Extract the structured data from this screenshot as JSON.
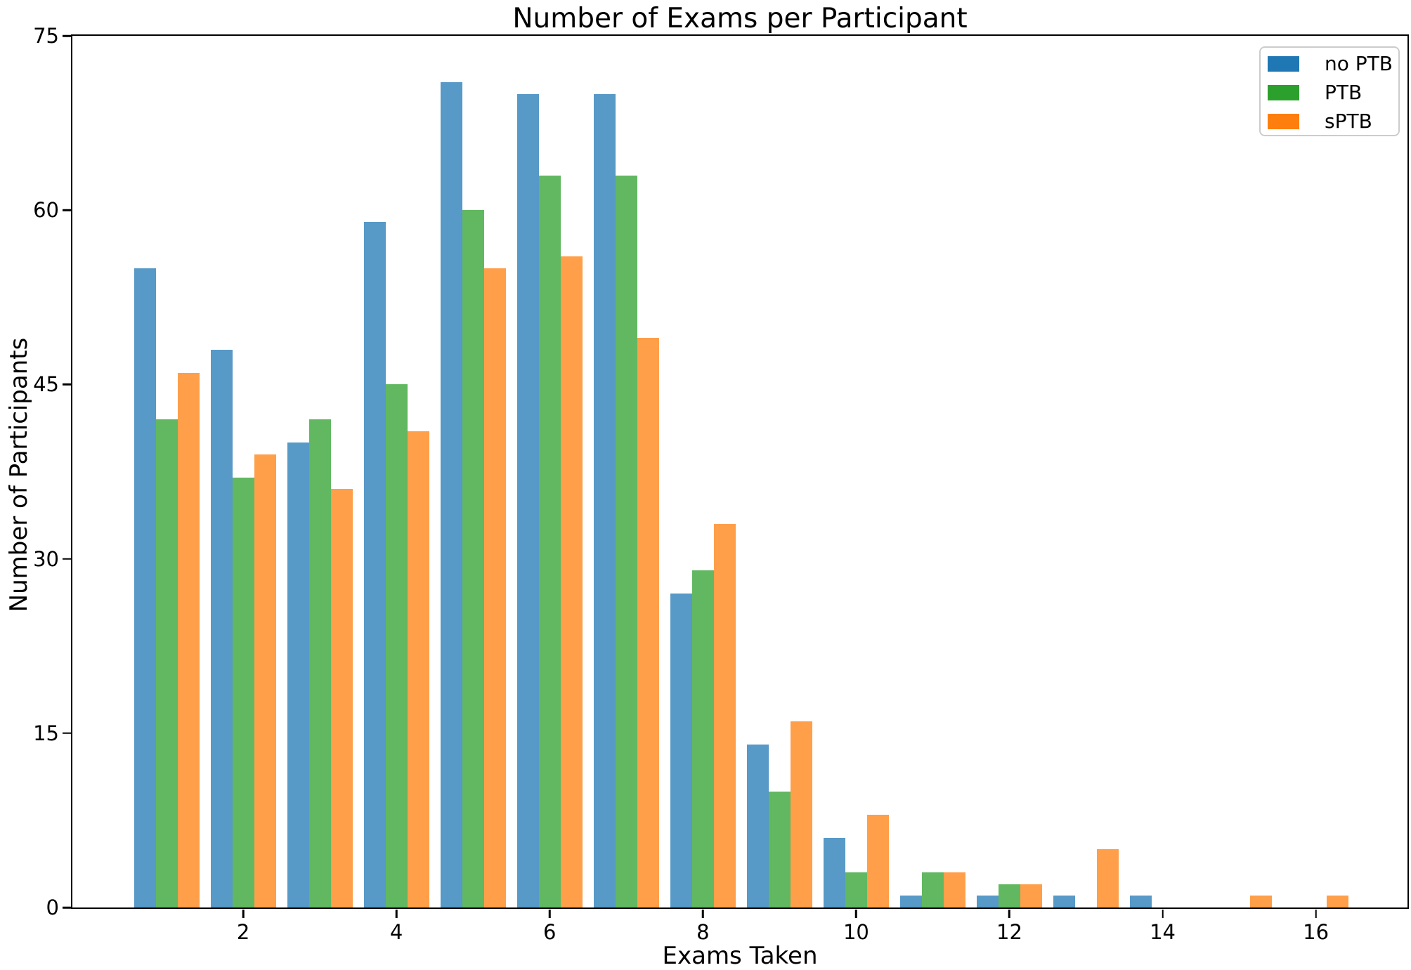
{
  "chart_data": {
    "type": "bar",
    "title": "Number of Exams per Participant",
    "xlabel": "Exams Taken",
    "ylabel": "Number of Participants",
    "categories": [
      1,
      2,
      3,
      4,
      5,
      6,
      7,
      8,
      9,
      10,
      11,
      12,
      13,
      14,
      15,
      16
    ],
    "x_tick_labels": [
      2,
      4,
      6,
      8,
      10,
      12,
      14,
      16
    ],
    "y_tick_labels": [
      0,
      15,
      30,
      45,
      60,
      75
    ],
    "xlim": [
      -0.22,
      17.22
    ],
    "ylim": [
      0,
      75
    ],
    "grid": false,
    "legend_position": "upper right",
    "series": [
      {
        "name": "no PTB",
        "legend_color": "#1f77b4",
        "bar_color": "rgba(31,119,180,0.75)",
        "values": [
          55,
          48,
          40,
          59,
          71,
          70,
          70,
          27,
          14,
          6,
          1,
          1,
          1,
          1,
          0,
          0
        ]
      },
      {
        "name": "PTB",
        "legend_color": "#2ca02c",
        "bar_color": "rgba(44,160,44,0.75)",
        "values": [
          42,
          37,
          42,
          45,
          60,
          63,
          63,
          29,
          10,
          3,
          3,
          2,
          0,
          0,
          0,
          0
        ]
      },
      {
        "name": "sPTB",
        "legend_color": "#ff7f0e",
        "bar_color": "rgba(255,127,14,0.75)",
        "values": [
          46,
          39,
          36,
          41,
          55,
          56,
          49,
          33,
          16,
          8,
          3,
          2,
          5,
          0,
          1,
          1
        ]
      }
    ]
  }
}
